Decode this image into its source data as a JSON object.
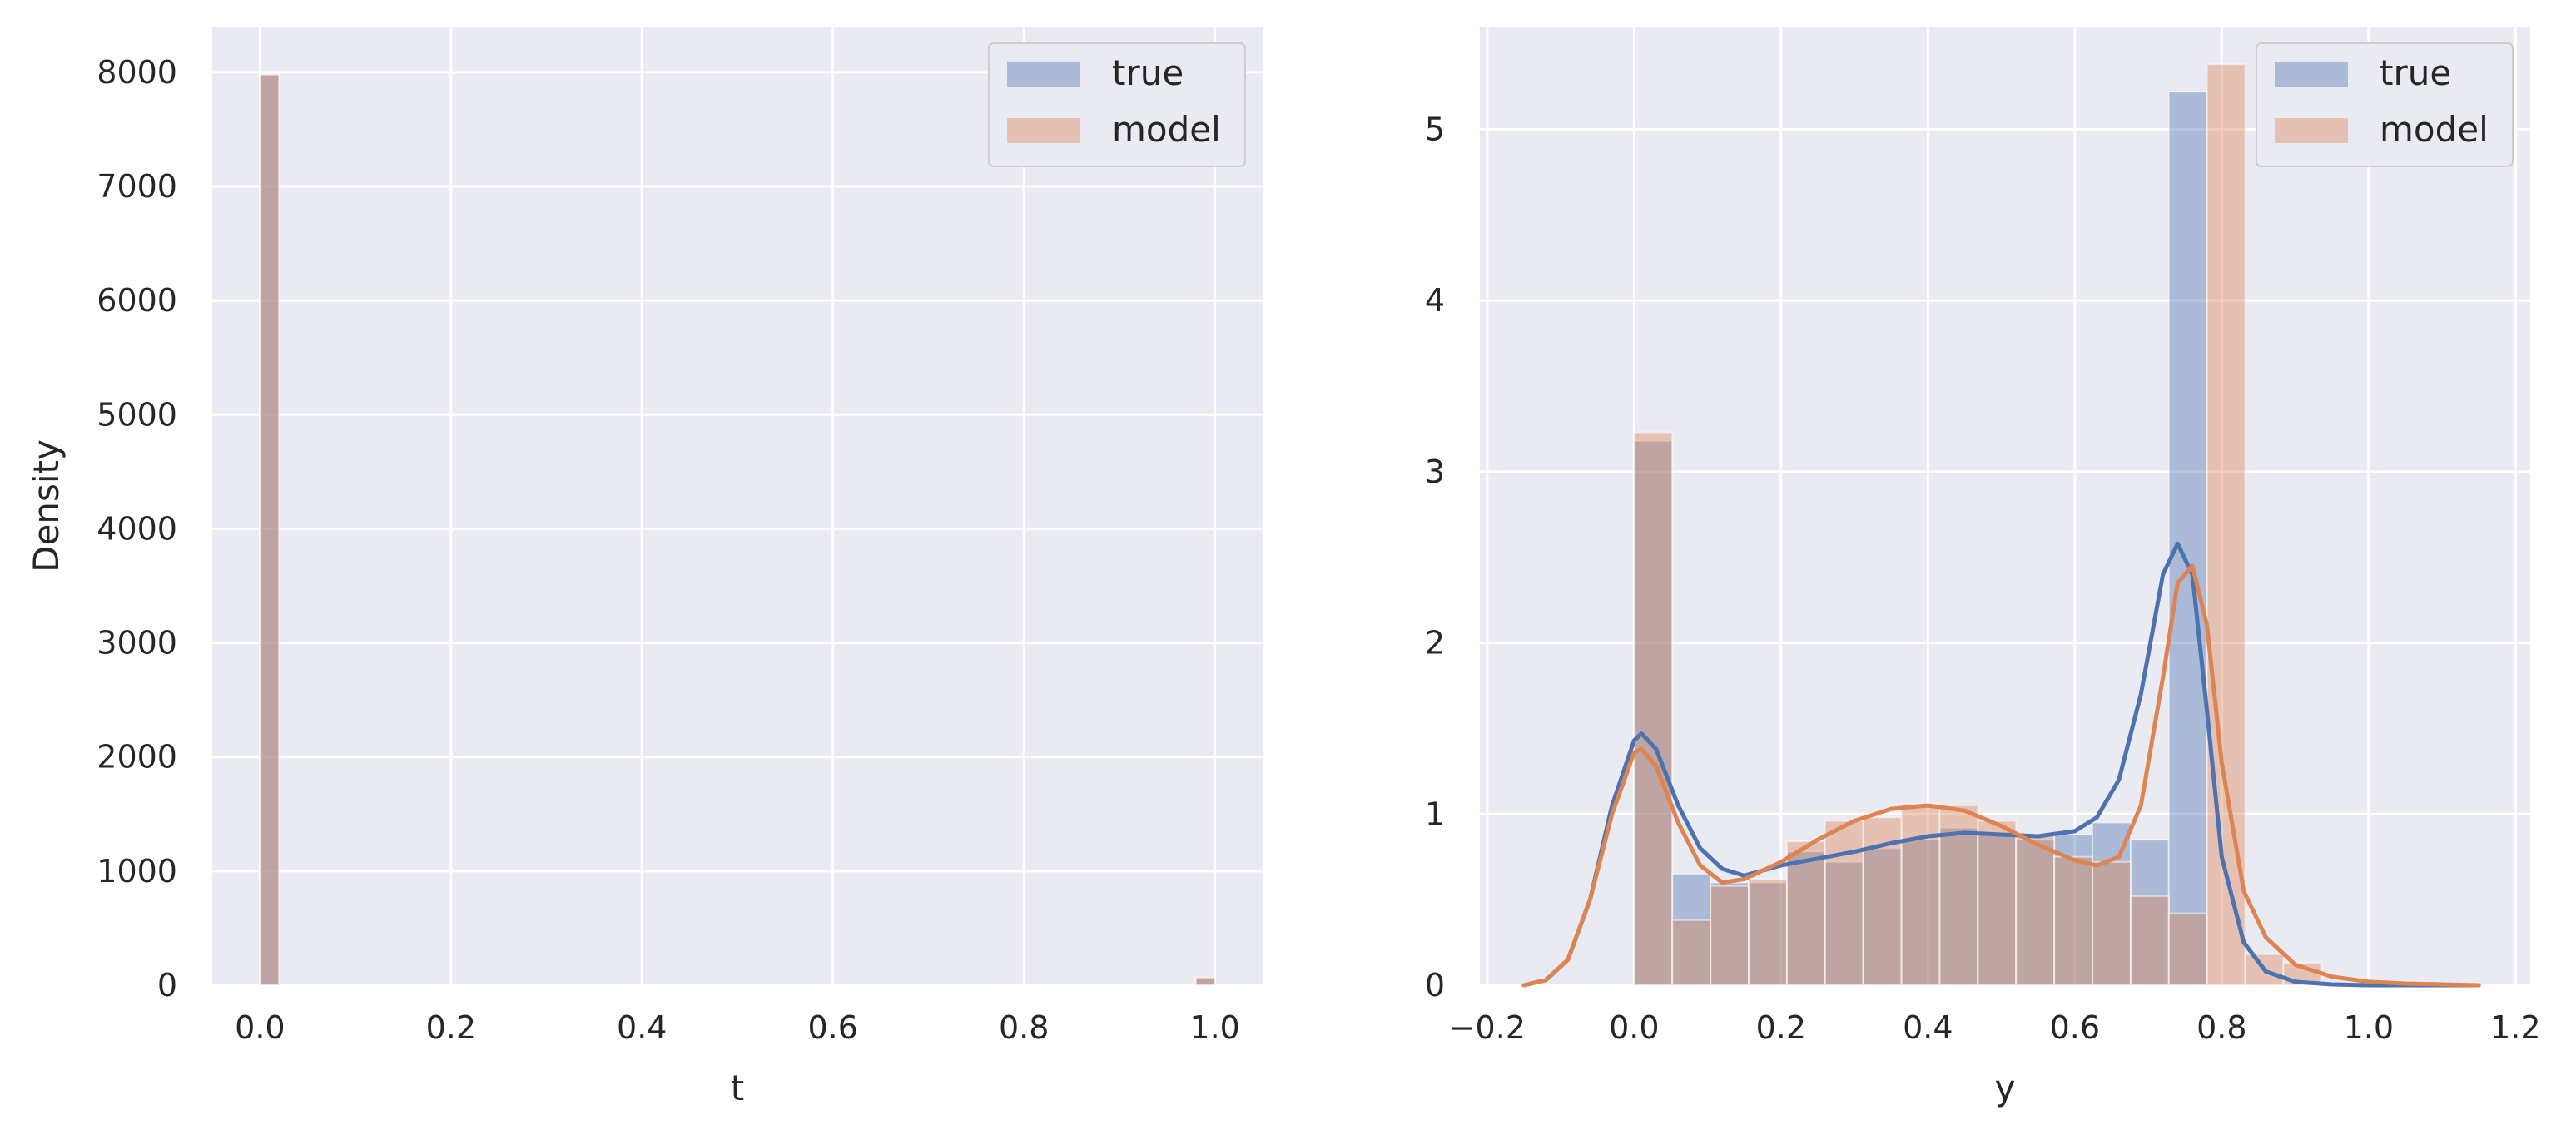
{
  "colors": {
    "true": "#4c72b0",
    "model": "#dd8452",
    "axes_bg": "#eaeaf2",
    "grid": "#ffffff"
  },
  "chart_data": [
    {
      "type": "histogram",
      "title": "",
      "xlabel": "t",
      "ylabel": "Density",
      "xlim": [
        -0.05,
        1.05
      ],
      "ylim": [
        0,
        8400
      ],
      "xticks": [
        0.0,
        0.2,
        0.4,
        0.6,
        0.8,
        1.0
      ],
      "xtick_labels": [
        "0.0",
        "0.2",
        "0.4",
        "0.6",
        "0.8",
        "1.0"
      ],
      "yticks": [
        0,
        1000,
        2000,
        3000,
        4000,
        5000,
        6000,
        7000,
        8000
      ],
      "ytick_labels": [
        "0",
        "1000",
        "2000",
        "3000",
        "4000",
        "5000",
        "6000",
        "7000",
        "8000"
      ],
      "grid": true,
      "legend": "top-right",
      "series": [
        {
          "name": "true",
          "bins": [
            {
              "x0": 0.0,
              "x1": 0.02,
              "y": 7980
            },
            {
              "x0": 0.98,
              "x1": 1.0,
              "y": 60
            }
          ]
        },
        {
          "name": "model",
          "bins": [
            {
              "x0": 0.0,
              "x1": 0.02,
              "y": 7980
            },
            {
              "x0": 0.98,
              "x1": 1.0,
              "y": 70
            }
          ]
        }
      ]
    },
    {
      "type": "histogram",
      "title": "",
      "xlabel": "y",
      "ylabel": "",
      "xlim": [
        -0.21,
        1.22
      ],
      "ylim": [
        0,
        5.6
      ],
      "xticks": [
        -0.2,
        0.0,
        0.2,
        0.4,
        0.6,
        0.8,
        1.0,
        1.2
      ],
      "xtick_labels": [
        "−0.2",
        "0.0",
        "0.2",
        "0.4",
        "0.6",
        "0.8",
        "1.0",
        "1.2"
      ],
      "yticks": [
        0,
        1,
        2,
        3,
        4,
        5
      ],
      "ytick_labels": [
        "0",
        "1",
        "2",
        "3",
        "4",
        "5"
      ],
      "grid": true,
      "legend": "top-right",
      "bin_edges": [
        0.0,
        0.052,
        0.104,
        0.156,
        0.208,
        0.26,
        0.312,
        0.364,
        0.416,
        0.468,
        0.52,
        0.572,
        0.624,
        0.676,
        0.728,
        0.78,
        0.832,
        0.884,
        0.936
      ],
      "series": [
        {
          "name": "true",
          "values": [
            3.18,
            0.65,
            0.6,
            0.6,
            0.78,
            0.72,
            0.8,
            0.85,
            0.92,
            0.88,
            0.85,
            0.88,
            0.95,
            0.85,
            5.22,
            0.0,
            0.0,
            0.0
          ],
          "kde": {
            "x": [
              -0.15,
              -0.12,
              -0.09,
              -0.06,
              -0.03,
              0.0,
              0.01,
              0.03,
              0.06,
              0.09,
              0.12,
              0.15,
              0.2,
              0.25,
              0.3,
              0.35,
              0.4,
              0.45,
              0.5,
              0.55,
              0.6,
              0.63,
              0.66,
              0.69,
              0.72,
              0.74,
              0.76,
              0.78,
              0.8,
              0.83,
              0.86,
              0.9,
              0.95,
              1.0,
              1.05,
              1.1,
              1.15
            ],
            "y": [
              0.0,
              0.03,
              0.15,
              0.5,
              1.05,
              1.43,
              1.47,
              1.38,
              1.05,
              0.8,
              0.68,
              0.64,
              0.7,
              0.74,
              0.78,
              0.83,
              0.87,
              0.89,
              0.88,
              0.87,
              0.9,
              0.98,
              1.2,
              1.7,
              2.4,
              2.58,
              2.4,
              1.6,
              0.75,
              0.25,
              0.08,
              0.02,
              0.005,
              0.0,
              0.0,
              0.0,
              0.0
            ]
          }
        },
        {
          "name": "model",
          "values": [
            3.23,
            0.38,
            0.58,
            0.62,
            0.84,
            0.96,
            0.98,
            1.06,
            1.05,
            0.96,
            0.88,
            0.75,
            0.72,
            0.52,
            0.42,
            5.38,
            0.18,
            0.13
          ],
          "kde": {
            "x": [
              -0.15,
              -0.12,
              -0.09,
              -0.06,
              -0.03,
              0.0,
              0.01,
              0.03,
              0.06,
              0.09,
              0.12,
              0.15,
              0.2,
              0.25,
              0.3,
              0.35,
              0.4,
              0.45,
              0.5,
              0.55,
              0.6,
              0.63,
              0.66,
              0.69,
              0.72,
              0.74,
              0.76,
              0.78,
              0.8,
              0.83,
              0.86,
              0.9,
              0.95,
              1.0,
              1.05,
              1.1,
              1.15
            ],
            "y": [
              0.0,
              0.03,
              0.15,
              0.5,
              1.0,
              1.36,
              1.38,
              1.28,
              0.95,
              0.7,
              0.6,
              0.62,
              0.72,
              0.85,
              0.96,
              1.03,
              1.05,
              1.02,
              0.93,
              0.82,
              0.73,
              0.7,
              0.75,
              1.05,
              1.8,
              2.35,
              2.45,
              2.1,
              1.3,
              0.55,
              0.28,
              0.12,
              0.05,
              0.02,
              0.01,
              0.005,
              0.0
            ]
          }
        }
      ]
    }
  ]
}
